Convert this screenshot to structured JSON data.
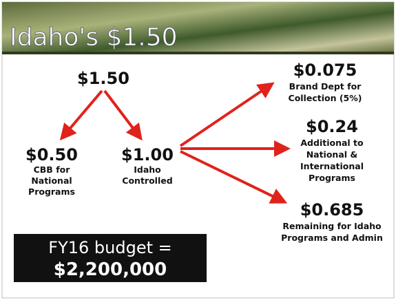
{
  "title": "Idaho's $1.50",
  "nodes": [
    {
      "amount": "$1.50",
      "label": []
    },
    {
      "amount": "$0.50",
      "label": [
        "CBB for",
        "National",
        "Programs"
      ]
    },
    {
      "amount": "$1.00",
      "label": [
        "Idaho",
        "Controlled"
      ]
    },
    {
      "amount": "$0.075",
      "label": [
        "Brand Dept for",
        "Collection (5%)"
      ]
    },
    {
      "amount": "$0.24",
      "label": [
        "Additional to",
        "National &",
        "International",
        "Programs"
      ]
    },
    {
      "amount": "$0.685",
      "label": [
        "Remaining for Idaho",
        "Programs and Admin"
      ]
    }
  ],
  "budget": {
    "line1": "FY16  budget =",
    "line2": "$2,200,000"
  }
}
